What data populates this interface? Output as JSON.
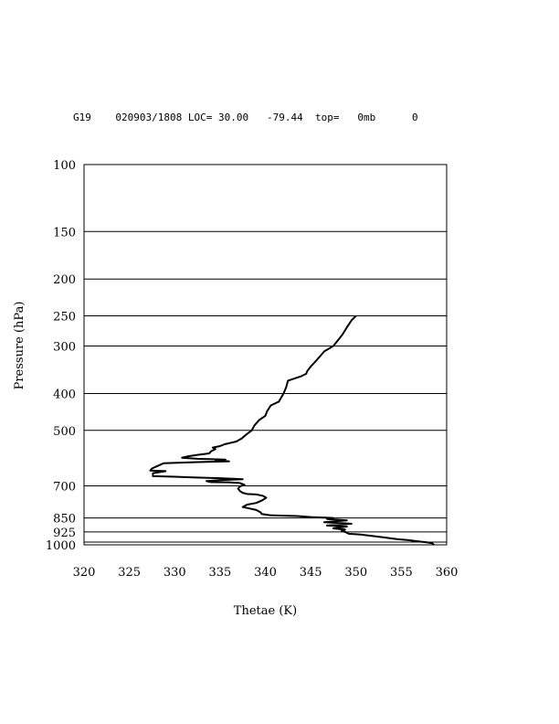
{
  "header": {
    "station": "G19",
    "datetime": "020903/1808",
    "loc_label": "LOC=",
    "lat": "30.00",
    "lon": "-79.44",
    "top_label": "top=",
    "top_value": "0mb",
    "extra": "0"
  },
  "chart_data": {
    "type": "line",
    "title": "",
    "xlabel": "Thetae (K)",
    "ylabel": "Pressure (hPa)",
    "xlim": [
      320,
      360
    ],
    "ylim": [
      1000,
      100
    ],
    "y_scale": "log",
    "x_ticks": [
      "320",
      "325",
      "330",
      "335",
      "340",
      "345",
      "350",
      "355",
      "360"
    ],
    "y_ticks": [
      "100",
      "150",
      "200",
      "250",
      "300",
      "400",
      "500",
      "700",
      "850",
      "925",
      "1000"
    ],
    "y_gridlines": [
      150,
      200,
      250,
      300,
      400,
      500,
      700,
      850,
      925,
      1000
    ],
    "series": [
      {
        "color": "#000000",
        "points": [
          [
            358.6,
            1000
          ],
          [
            358.4,
            990
          ],
          [
            357.8,
            985
          ],
          [
            357.0,
            980
          ],
          [
            355.8,
            972
          ],
          [
            354.5,
            966
          ],
          [
            353.0,
            955
          ],
          [
            350.5,
            940
          ],
          [
            349.2,
            935
          ],
          [
            348.8,
            925
          ],
          [
            348.4,
            920
          ],
          [
            348.8,
            912
          ],
          [
            347.5,
            905
          ],
          [
            349.0,
            895
          ],
          [
            346.8,
            890
          ],
          [
            349.5,
            880
          ],
          [
            346.5,
            872
          ],
          [
            349.0,
            862
          ],
          [
            346.8,
            855
          ],
          [
            347.5,
            850
          ],
          [
            345.0,
            845
          ],
          [
            343.5,
            840
          ],
          [
            342.0,
            838
          ],
          [
            340.5,
            836
          ],
          [
            339.6,
            830
          ],
          [
            339.5,
            822
          ],
          [
            339.0,
            810
          ],
          [
            338.0,
            800
          ],
          [
            337.5,
            795
          ],
          [
            338.0,
            784
          ],
          [
            339.0,
            776
          ],
          [
            339.6,
            765
          ],
          [
            340.1,
            752
          ],
          [
            339.7,
            743
          ],
          [
            339.0,
            737
          ],
          [
            338.0,
            735
          ],
          [
            337.5,
            730
          ],
          [
            337.2,
            722
          ],
          [
            337.0,
            712
          ],
          [
            337.2,
            702
          ],
          [
            337.7,
            695
          ],
          [
            337.2,
            688
          ],
          [
            336.0,
            685
          ],
          [
            334.0,
            684
          ],
          [
            333.5,
            680
          ],
          [
            335.0,
            676
          ],
          [
            337.5,
            672
          ],
          [
            335.0,
            668
          ],
          [
            332.0,
            665
          ],
          [
            330.0,
            662
          ],
          [
            327.6,
            660
          ],
          [
            327.6,
            648
          ],
          [
            329.0,
            640
          ],
          [
            327.3,
            638
          ],
          [
            327.5,
            630
          ],
          [
            328.0,
            622
          ],
          [
            328.8,
            610
          ],
          [
            332.5,
            606
          ],
          [
            336.0,
            603
          ],
          [
            334.5,
            600
          ],
          [
            335.6,
            597
          ],
          [
            332.5,
            594
          ],
          [
            330.8,
            590
          ],
          [
            331.5,
            585
          ],
          [
            332.5,
            580
          ],
          [
            333.8,
            575
          ],
          [
            334.0,
            568
          ],
          [
            334.5,
            560
          ],
          [
            334.2,
            555
          ],
          [
            335.0,
            550
          ],
          [
            335.5,
            544
          ],
          [
            336.8,
            535
          ],
          [
            337.4,
            525
          ],
          [
            337.8,
            515
          ],
          [
            338.5,
            500
          ],
          [
            338.8,
            485
          ],
          [
            339.3,
            470
          ],
          [
            340.0,
            458
          ],
          [
            340.2,
            445
          ],
          [
            340.6,
            430
          ],
          [
            341.5,
            420
          ],
          [
            342.0,
            400
          ],
          [
            342.3,
            385
          ],
          [
            342.5,
            370
          ],
          [
            344.0,
            360
          ],
          [
            344.5,
            355
          ],
          [
            344.6,
            350
          ],
          [
            344.8,
            345
          ],
          [
            345.0,
            340
          ],
          [
            345.5,
            330
          ],
          [
            346.0,
            320
          ],
          [
            346.5,
            310
          ],
          [
            347.5,
            300
          ],
          [
            348.0,
            290
          ],
          [
            348.5,
            280
          ],
          [
            349.0,
            268
          ],
          [
            349.5,
            257
          ],
          [
            350.0,
            250
          ]
        ]
      }
    ]
  }
}
